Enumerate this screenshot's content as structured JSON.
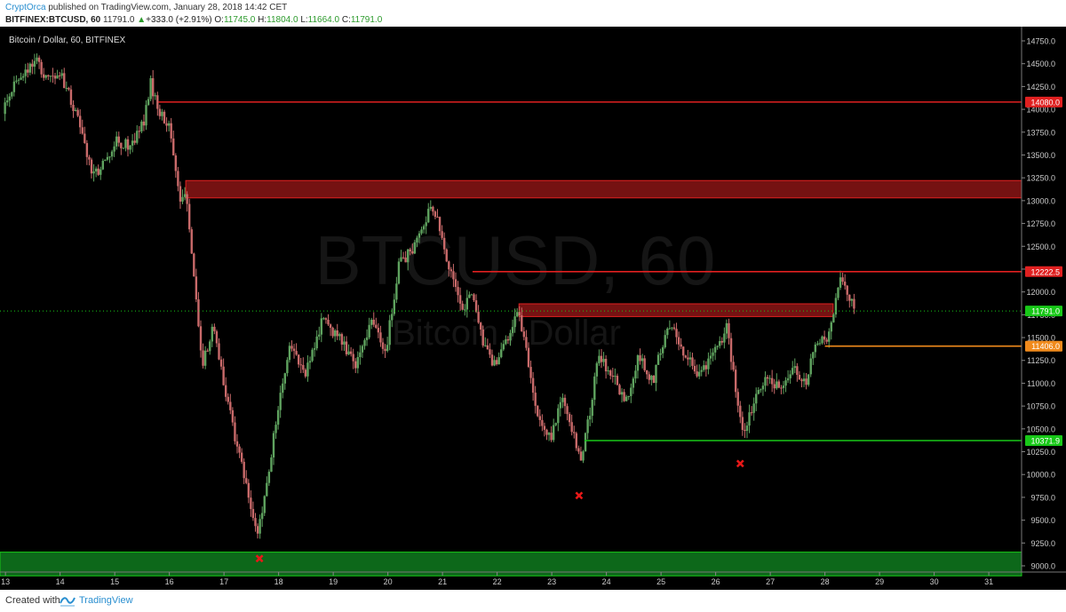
{
  "header": {
    "author": "CryptOrca",
    "published_text": "published on TradingView.com, January 28, 2018 14:42 CET",
    "symbol": "BITFINEX:BTCUSD, 60",
    "last": "11791.0",
    "change": "+333.0 (+2.91%)",
    "change_arrow": "▲",
    "o_label": "O:",
    "o_value": "11745.0",
    "h_label": "H:",
    "h_value": "11804.0",
    "l_label": "L:",
    "l_value": "11664.0",
    "c_label": "C:",
    "c_value": "11791.0"
  },
  "footer": {
    "created_with": "Created with",
    "brand": "TradingView"
  },
  "colors": {
    "background": "#000000",
    "up_candle": "#5fa35f",
    "down_candle": "#c96a6a",
    "resistance": "#e02020",
    "zone_red": "#8a1515",
    "support_green": "#18c818",
    "zone_green": "#0f7a1f",
    "orange_level": "#f08a1c",
    "marker": "#e81818"
  },
  "chart_data": {
    "type": "candlestick",
    "title": "Bitcoin / Dollar, 60, BITFINEX",
    "watermark_symbol": "BTCUSD, 60",
    "watermark_name": "Bitcoin / Dollar",
    "ylim": [
      8800,
      14900
    ],
    "y_ticks": [
      9000,
      9250,
      9500,
      9750,
      10000,
      10250,
      10500,
      10750,
      11000,
      11250,
      11500,
      11750,
      12000,
      12250,
      12500,
      12750,
      13000,
      13250,
      13500,
      13750,
      14000,
      14250,
      14500,
      14750
    ],
    "x_ticks": [
      "13",
      "14",
      "15",
      "16",
      "17",
      "18",
      "19",
      "20",
      "21",
      "22",
      "23",
      "24",
      "25",
      "26",
      "27",
      "28",
      "29",
      "30",
      "31"
    ],
    "x_range_days": [
      12.9,
      31.6
    ],
    "last_price": 11791.0,
    "price_labels": [
      {
        "value": 14080.0,
        "text": "14080.0",
        "color": "#e02020"
      },
      {
        "value": 12222.5,
        "text": "12222.5",
        "color": "#e02020"
      },
      {
        "value": 11791.0,
        "text": "11791.0",
        "color": "#18c818"
      },
      {
        "value": 11406.0,
        "text": "11406.0",
        "color": "#f08a1c"
      },
      {
        "value": 10371.9,
        "text": "10371.9",
        "color": "#18c818"
      }
    ],
    "levels": [
      {
        "value": 14080,
        "from_day": 15.8,
        "color": "#e02020"
      },
      {
        "value": 12222.5,
        "from_day": 21.55,
        "color": "#e02020"
      },
      {
        "value": 11406,
        "from_day": 28.0,
        "color": "#f08a1c"
      },
      {
        "value": 10371.9,
        "from_day": 23.6,
        "color": "#18c818"
      }
    ],
    "zones": [
      {
        "low": 13030,
        "high": 13220,
        "from_day": 16.3,
        "to_day": 31.6,
        "color": "#8a1515"
      },
      {
        "low": 11730,
        "high": 11870,
        "from_day": 22.4,
        "to_day": 28.15,
        "color": "#8a1515"
      },
      {
        "low": 8890,
        "high": 9150,
        "from_day": 12.9,
        "to_day": 31.6,
        "color": "#0f7a1f"
      }
    ],
    "markers": [
      {
        "day": 17.65,
        "price": 9080
      },
      {
        "day": 23.5,
        "price": 9770
      },
      {
        "day": 26.45,
        "price": 10120
      }
    ],
    "path": [
      [
        12.95,
        13950
      ],
      [
        13.15,
        14300
      ],
      [
        13.4,
        14400
      ],
      [
        13.55,
        14550
      ],
      [
        13.8,
        14300
      ],
      [
        14.0,
        14400
      ],
      [
        14.2,
        14100
      ],
      [
        14.4,
        13750
      ],
      [
        14.6,
        13250
      ],
      [
        14.8,
        13400
      ],
      [
        15.0,
        13650
      ],
      [
        15.3,
        13600
      ],
      [
        15.55,
        13900
      ],
      [
        15.65,
        14300
      ],
      [
        15.8,
        14000
      ],
      [
        16.0,
        13800
      ],
      [
        16.2,
        13000
      ],
      [
        16.3,
        13150
      ],
      [
        16.45,
        12200
      ],
      [
        16.6,
        11200
      ],
      [
        16.8,
        11600
      ],
      [
        17.0,
        11000
      ],
      [
        17.2,
        10400
      ],
      [
        17.45,
        9800
      ],
      [
        17.6,
        9300
      ],
      [
        17.75,
        9750
      ],
      [
        17.95,
        10600
      ],
      [
        18.2,
        11400
      ],
      [
        18.5,
        11100
      ],
      [
        18.8,
        11700
      ],
      [
        19.1,
        11500
      ],
      [
        19.4,
        11200
      ],
      [
        19.7,
        11700
      ],
      [
        19.95,
        11300
      ],
      [
        20.2,
        12300
      ],
      [
        20.5,
        12500
      ],
      [
        20.75,
        12900
      ],
      [
        20.9,
        12800
      ],
      [
        21.1,
        12300
      ],
      [
        21.35,
        11800
      ],
      [
        21.55,
        12000
      ],
      [
        21.75,
        11400
      ],
      [
        21.95,
        11200
      ],
      [
        22.2,
        11500
      ],
      [
        22.4,
        11800
      ],
      [
        22.6,
        11100
      ],
      [
        22.8,
        10500
      ],
      [
        23.0,
        10400
      ],
      [
        23.2,
        10900
      ],
      [
        23.35,
        10500
      ],
      [
        23.55,
        10150
      ],
      [
        23.7,
        10700
      ],
      [
        23.85,
        11300
      ],
      [
        24.1,
        11100
      ],
      [
        24.35,
        10800
      ],
      [
        24.6,
        11300
      ],
      [
        24.85,
        11000
      ],
      [
        25.0,
        11400
      ],
      [
        25.2,
        11650
      ],
      [
        25.45,
        11300
      ],
      [
        25.7,
        11100
      ],
      [
        26.0,
        11350
      ],
      [
        26.2,
        11600
      ],
      [
        26.35,
        11000
      ],
      [
        26.5,
        10450
      ],
      [
        26.7,
        10800
      ],
      [
        26.95,
        11100
      ],
      [
        27.2,
        10900
      ],
      [
        27.45,
        11200
      ],
      [
        27.65,
        10950
      ],
      [
        27.8,
        11450
      ],
      [
        28.05,
        11500
      ],
      [
        28.3,
        12150
      ],
      [
        28.45,
        11950
      ],
      [
        28.55,
        11791
      ]
    ]
  }
}
